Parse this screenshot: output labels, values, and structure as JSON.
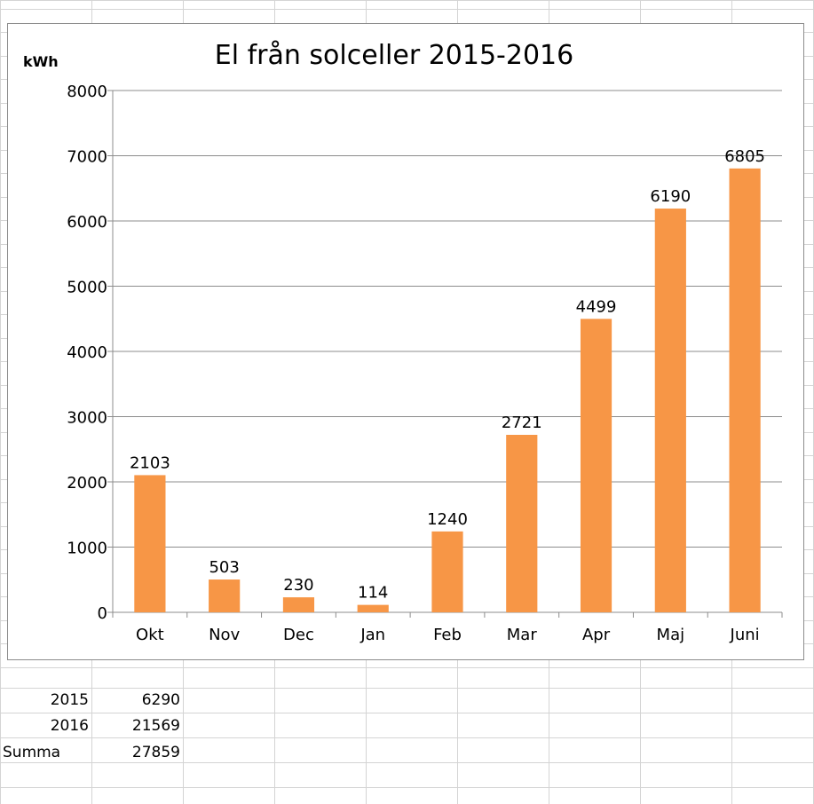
{
  "colors": {
    "bar": "#f79646",
    "gridline": "#8c8c8c",
    "sheet_grid": "#d4d4d4",
    "frame_border": "#8c8c8c"
  },
  "chart_data": {
    "type": "bar",
    "title": "El från solceller 2015-2016",
    "ylabel": "kWh",
    "xlabel": "",
    "categories": [
      "Okt",
      "Nov",
      "Dec",
      "Jan",
      "Feb",
      "Mar",
      "Apr",
      "Maj",
      "Juni"
    ],
    "values": [
      2103,
      503,
      230,
      114,
      1240,
      2721,
      4499,
      6190,
      6805
    ],
    "data_labels": [
      "2103",
      "503",
      "230",
      "114",
      "1240",
      "2721",
      "4499",
      "6190",
      "6805"
    ],
    "ylim": [
      0,
      8000
    ],
    "yticks": [
      0,
      1000,
      2000,
      3000,
      4000,
      5000,
      6000,
      7000,
      8000
    ],
    "ytick_labels": [
      "0",
      "1000",
      "2000",
      "3000",
      "4000",
      "5000",
      "6000",
      "7000",
      "8000"
    ],
    "grid": true,
    "legend": "none"
  },
  "sheet": {
    "rows": [
      {
        "label": "2015",
        "value": "6290"
      },
      {
        "label": "2016",
        "value": "21569"
      },
      {
        "label": "Summa",
        "value": "27859"
      }
    ]
  }
}
